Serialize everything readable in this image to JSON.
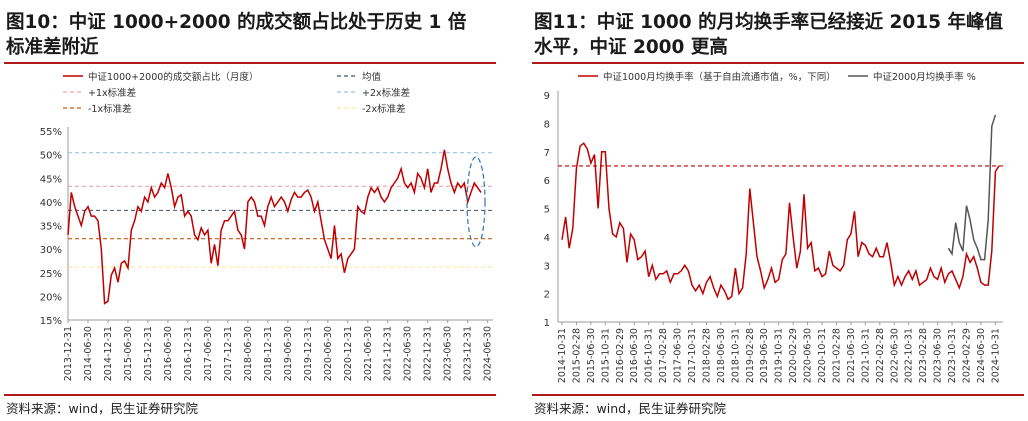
{
  "left": {
    "title_line1": "图10：中证 1000+2000 的成交额占比处于历史 1 倍",
    "title_line2": "标准差附近",
    "source": "资料来源：wind，民生证券研究院",
    "colors": {
      "main": "#c00000",
      "mean": "#44546a",
      "plus1": "#f2a6a6",
      "plus2": "#9dc3e6",
      "minus1": "#c55a11",
      "minus2": "#ffe699",
      "ellipse": "#2e75b6"
    }
  },
  "right": {
    "title_line1": "图11：中证 1000 的月均换手率已经接近 2015 年峰值",
    "title_line2": "水平，中证 2000 更高",
    "source": "资料来源：wind，民生证券研究院",
    "colors": {
      "csi1000": "#c00000",
      "csi2000": "#555555",
      "ref": "#c00000"
    }
  },
  "chart_data": [
    {
      "type": "line",
      "ylim": [
        0.15,
        0.55
      ],
      "y_ticks": [
        "55%",
        "50%",
        "45%",
        "40%",
        "35%",
        "30%",
        "25%",
        "20%",
        "15%"
      ],
      "x_ticks": [
        "2013-12-31",
        "2014-06-30",
        "2014-12-31",
        "2015-06-30",
        "2015-12-31",
        "2016-06-30",
        "2016-12-31",
        "2017-06-30",
        "2017-12-31",
        "2018-06-30",
        "2018-12-31",
        "2019-06-30",
        "2019-12-31",
        "2020-06-30",
        "2020-12-31",
        "2021-06-30",
        "2021-12-31",
        "2022-06-30",
        "2022-12-31",
        "2023-06-30",
        "2023-12-31",
        "2024-06-30"
      ],
      "legend": [
        "中证1000+2000的成交额占比（月度）",
        "均值",
        "+1x标准差",
        "+2x标准差",
        "-1x标准差",
        "-2x标准差"
      ],
      "reference_lines": {
        "mean": 0.382,
        "plus1": 0.433,
        "plus2": 0.504,
        "minus1": 0.322,
        "minus2": 0.262
      },
      "series": [
        {
          "name": "中证1000+2000的成交额占比（月度）",
          "x_start": "2013-12-31",
          "frequency": "monthly",
          "values": [
            0.33,
            0.42,
            0.39,
            0.37,
            0.35,
            0.38,
            0.39,
            0.37,
            0.37,
            0.36,
            0.3,
            0.185,
            0.19,
            0.245,
            0.26,
            0.23,
            0.27,
            0.275,
            0.26,
            0.34,
            0.36,
            0.39,
            0.38,
            0.41,
            0.4,
            0.43,
            0.41,
            0.42,
            0.44,
            0.43,
            0.46,
            0.43,
            0.39,
            0.41,
            0.415,
            0.37,
            0.38,
            0.37,
            0.33,
            0.32,
            0.345,
            0.33,
            0.34,
            0.27,
            0.31,
            0.265,
            0.34,
            0.36,
            0.36,
            0.37,
            0.38,
            0.34,
            0.33,
            0.3,
            0.4,
            0.41,
            0.4,
            0.37,
            0.37,
            0.35,
            0.39,
            0.41,
            0.39,
            0.4,
            0.41,
            0.4,
            0.38,
            0.405,
            0.42,
            0.41,
            0.41,
            0.42,
            0.425,
            0.41,
            0.38,
            0.4,
            0.36,
            0.32,
            0.3,
            0.28,
            0.35,
            0.28,
            0.29,
            0.25,
            0.28,
            0.29,
            0.3,
            0.39,
            0.38,
            0.375,
            0.41,
            0.43,
            0.42,
            0.43,
            0.41,
            0.4,
            0.41,
            0.43,
            0.44,
            0.45,
            0.47,
            0.44,
            0.43,
            0.44,
            0.42,
            0.46,
            0.45,
            0.43,
            0.47,
            0.42,
            0.44,
            0.44,
            0.47,
            0.51,
            0.47,
            0.44,
            0.42,
            0.44,
            0.43,
            0.44,
            0.4,
            0.42,
            0.44,
            0.43,
            0.42
          ]
        }
      ]
    },
    {
      "type": "line",
      "ylim": [
        1,
        9
      ],
      "y_ticks": [
        "9",
        "8",
        "7",
        "6",
        "5",
        "4",
        "3",
        "2",
        "1"
      ],
      "x_ticks": [
        "2014-10-31",
        "2015-02-28",
        "2015-06-30",
        "2015-10-31",
        "2016-02-29",
        "2016-06-30",
        "2016-10-31",
        "2017-02-28",
        "2017-06-30",
        "2017-10-31",
        "2018-02-28",
        "2018-06-30",
        "2018-10-31",
        "2019-02-28",
        "2019-06-30",
        "2019-10-31",
        "2020-02-29",
        "2020-06-30",
        "2020-10-31",
        "2021-02-28",
        "2021-06-30",
        "2021-10-31",
        "2022-02-28",
        "2022-06-30",
        "2022-10-31",
        "2023-02-28",
        "2023-06-30",
        "2023-10-31",
        "2024-02-29",
        "2024-06-30",
        "2024-10-31"
      ],
      "legend": [
        "中证1000月均换手率（基于自由流通市值，%，下同）",
        "中证2000月均换手率 %"
      ],
      "reference_line": 6.5,
      "series": [
        {
          "name": "中证1000月均换手率（基于自由流通市值，%，下同）",
          "x_start": "2014-10-31",
          "frequency": "monthly",
          "values": [
            3.9,
            4.7,
            3.6,
            4.3,
            6.4,
            7.2,
            7.3,
            7.1,
            6.6,
            6.9,
            5.0,
            7.0,
            7.0,
            5.0,
            4.1,
            4.0,
            4.5,
            4.3,
            3.1,
            4.1,
            3.9,
            3.2,
            3.3,
            3.5,
            2.6,
            3.0,
            2.5,
            2.7,
            2.7,
            2.8,
            2.4,
            2.7,
            2.7,
            2.8,
            3.0,
            2.8,
            2.3,
            2.1,
            2.3,
            2.0,
            2.4,
            2.6,
            2.2,
            1.9,
            2.3,
            2.1,
            1.8,
            1.9,
            2.9,
            2.0,
            2.2,
            3.4,
            5.7,
            4.5,
            3.3,
            2.8,
            2.2,
            2.5,
            2.9,
            2.4,
            2.5,
            3.2,
            3.4,
            5.2,
            4.0,
            2.9,
            3.5,
            5.5,
            3.6,
            3.8,
            2.8,
            2.9,
            2.6,
            2.7,
            3.5,
            3.0,
            2.9,
            2.8,
            3.0,
            3.9,
            4.1,
            4.9,
            3.3,
            3.8,
            3.7,
            3.4,
            3.3,
            3.6,
            3.3,
            3.3,
            3.8,
            3.1,
            2.3,
            2.6,
            2.3,
            2.6,
            2.8,
            2.5,
            2.8,
            2.3,
            2.4,
            2.5,
            2.9,
            2.6,
            2.5,
            2.9,
            2.4,
            2.7,
            2.8,
            2.5,
            2.2,
            2.6,
            3.4,
            3.1,
            3.3,
            2.9,
            2.4,
            2.3,
            2.3,
            3.5,
            6.3,
            6.5
          ]
        },
        {
          "name": "中证2000月均换手率 %",
          "x_start": "2023-09-30",
          "frequency": "monthly",
          "values": [
            3.6,
            3.4,
            4.5,
            3.8,
            3.5,
            5.1,
            4.6,
            3.9,
            3.6,
            3.2,
            3.2,
            4.6,
            7.9,
            8.3
          ]
        }
      ]
    }
  ]
}
